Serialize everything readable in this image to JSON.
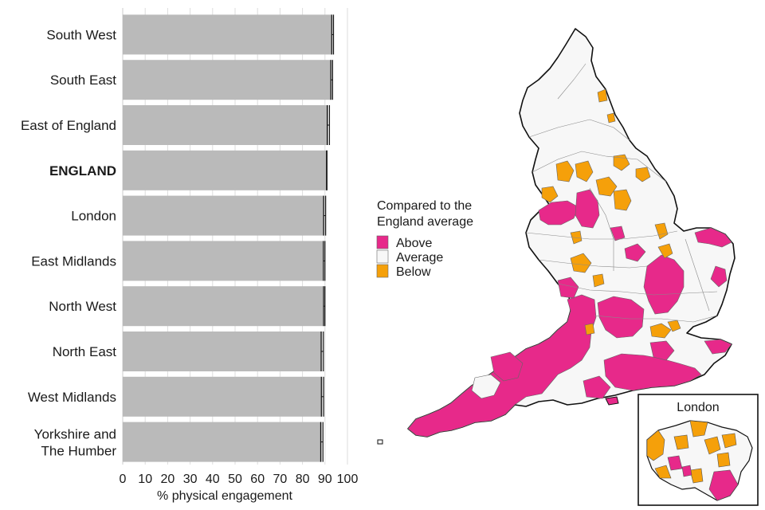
{
  "chart_data": [
    {
      "type": "bar",
      "orientation": "horizontal",
      "categories": [
        "South West",
        "South East",
        "East of England",
        "ENGLAND",
        "London",
        "East Midlands",
        "North West",
        "North East",
        "West Midlands",
        "Yorkshire and The Humber"
      ],
      "emphasis_category": "ENGLAND",
      "values": [
        93.4,
        93.0,
        91.5,
        90.8,
        89.8,
        89.6,
        89.6,
        88.8,
        88.9,
        88.6
      ],
      "ci_low": [
        93.0,
        92.6,
        91.0,
        90.7,
        89.4,
        89.3,
        89.4,
        88.3,
        88.4,
        88.1
      ],
      "ci_high": [
        93.8,
        93.4,
        92.0,
        90.9,
        90.3,
        90.0,
        90.0,
        89.3,
        89.4,
        89.1
      ],
      "xlabel": "% physical engagement",
      "xticks": [
        0,
        10,
        20,
        30,
        40,
        50,
        60,
        70,
        80,
        90,
        100
      ],
      "xlim": [
        0,
        100
      ],
      "grid": true,
      "bar_color": "#bababa",
      "ci_color": "#111111"
    },
    {
      "type": "map",
      "legend": {
        "title_lines": [
          "Compared to the",
          "England average"
        ],
        "items": [
          {
            "label": "Above",
            "color": "#e7298a"
          },
          {
            "label": "Average",
            "color": "#f7f7f7"
          },
          {
            "label": "Below",
            "color": "#f5a00a"
          }
        ],
        "placement": "left of map"
      },
      "inset_title": "London",
      "colors": {
        "outline": "#111111",
        "boundary": "#8a8a8a"
      }
    }
  ]
}
